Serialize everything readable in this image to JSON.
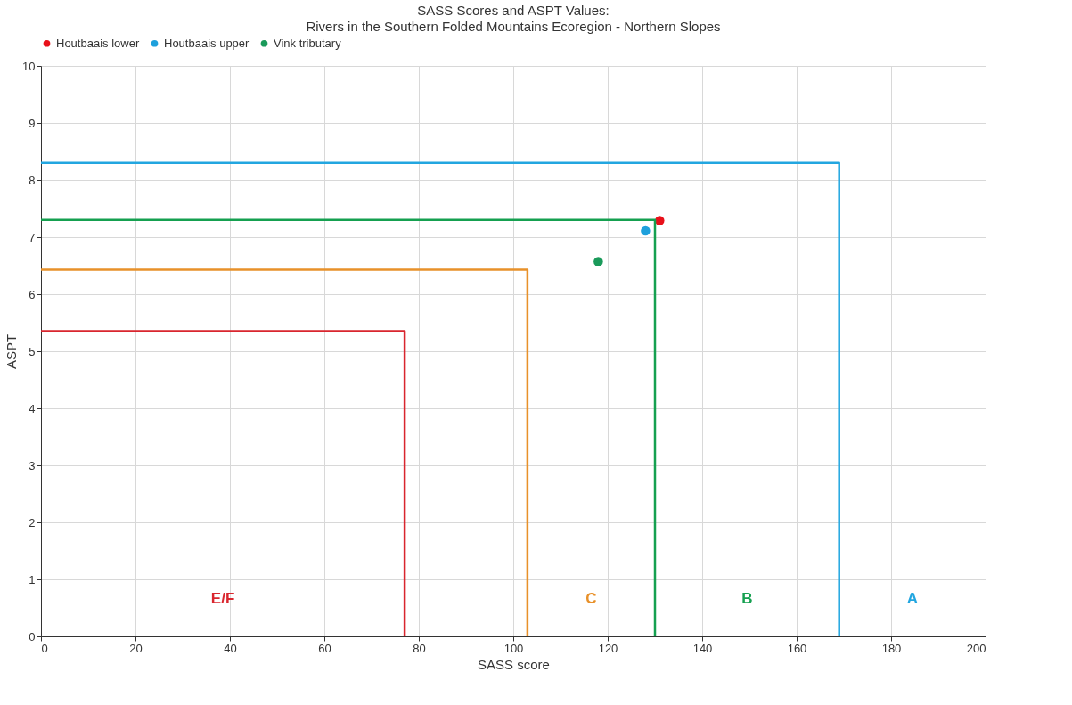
{
  "chart_data": {
    "type": "scatter",
    "title": "SASS Scores and ASPT Values:",
    "subtitle": "Rivers in the Southern Folded Mountains Ecoregion - Northern Slopes",
    "xlabel": "SASS score",
    "ylabel": "ASPT",
    "xlim": [
      0,
      200
    ],
    "xticks": [
      0,
      20,
      40,
      60,
      80,
      100,
      120,
      140,
      160,
      180,
      200
    ],
    "ylim": [
      0,
      10
    ],
    "yticks": [
      0,
      1,
      2,
      3,
      4,
      5,
      6,
      7,
      8,
      9,
      10
    ],
    "grid": true,
    "legend": "top",
    "series": [
      {
        "name": "Houtbaais lower",
        "color": "#e8101a",
        "marker": "circle",
        "x": [
          131
        ],
        "values": [
          7.29
        ]
      },
      {
        "name": "Houtbaais upper",
        "color": "#1ea0dc",
        "marker": "circle",
        "x": [
          128
        ],
        "values": [
          7.11
        ]
      },
      {
        "name": "Vink tributary",
        "color": "#1a9a5a",
        "marker": "circle",
        "x": [
          118
        ],
        "values": [
          6.57
        ]
      },
      {
        "type": "line",
        "color": "#d9262e",
        "x": [
          0,
          77,
          77
        ],
        "values": [
          5.35,
          5.35,
          0
        ]
      },
      {
        "type": "line",
        "color": "#e8912a",
        "x": [
          0,
          103,
          103
        ],
        "values": [
          6.43,
          6.43,
          0
        ]
      },
      {
        "type": "line",
        "color": "#15a050",
        "x": [
          0,
          130,
          130
        ],
        "values": [
          7.3,
          7.3,
          0
        ]
      },
      {
        "type": "line",
        "color": "#22a6e0",
        "x": [
          0,
          169,
          169
        ],
        "values": [
          8.3,
          8.3,
          0
        ]
      }
    ],
    "annotations": [
      "E/F",
      "C",
      "B",
      "A"
    ]
  }
}
